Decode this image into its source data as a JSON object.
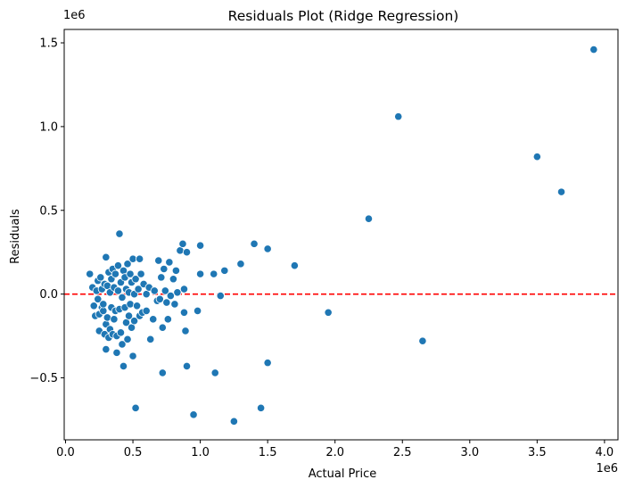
{
  "chart_data": {
    "type": "scatter",
    "title": "Residuals Plot (Ridge Regression)",
    "xlabel": "Actual Price",
    "ylabel": "Residuals",
    "x_scale_label": "1e6",
    "y_scale_label": "1e6",
    "xlim": [
      -0.01,
      4.1
    ],
    "ylim": [
      -0.87,
      1.58
    ],
    "x_ticks": [
      0.0,
      0.5,
      1.0,
      1.5,
      2.0,
      2.5,
      3.0,
      3.5,
      4.0
    ],
    "x_tick_labels": [
      "0.0",
      "0.5",
      "1.0",
      "1.5",
      "2.0",
      "2.5",
      "3.0",
      "3.5",
      "4.0"
    ],
    "y_ticks": [
      -0.5,
      0.0,
      0.5,
      1.0,
      1.5
    ],
    "y_tick_labels": [
      "−0.5",
      "0.0",
      "0.5",
      "1.0",
      "1.5"
    ],
    "grid": false,
    "marker_color": "#1f77b4",
    "reference_line": {
      "y": 0,
      "color": "#ff0000",
      "style": "dashed"
    },
    "points": [
      [
        0.18,
        0.12
      ],
      [
        0.2,
        0.04
      ],
      [
        0.21,
        -0.07
      ],
      [
        0.22,
        -0.13
      ],
      [
        0.23,
        0.02
      ],
      [
        0.24,
        -0.03
      ],
      [
        0.24,
        0.08
      ],
      [
        0.25,
        -0.12
      ],
      [
        0.25,
        -0.22
      ],
      [
        0.26,
        0.1
      ],
      [
        0.27,
        -0.08
      ],
      [
        0.27,
        0.03
      ],
      [
        0.28,
        -0.1
      ],
      [
        0.28,
        -0.06
      ],
      [
        0.29,
        -0.24
      ],
      [
        0.29,
        0.06
      ],
      [
        0.3,
        -0.18
      ],
      [
        0.3,
        0.22
      ],
      [
        0.3,
        -0.33
      ],
      [
        0.31,
        -0.14
      ],
      [
        0.31,
        0.05
      ],
      [
        0.32,
        0.13
      ],
      [
        0.32,
        -0.26
      ],
      [
        0.33,
        -0.21
      ],
      [
        0.33,
        0.01
      ],
      [
        0.34,
        -0.08
      ],
      [
        0.34,
        0.09
      ],
      [
        0.35,
        -0.24
      ],
      [
        0.35,
        0.15
      ],
      [
        0.36,
        -0.15
      ],
      [
        0.36,
        0.04
      ],
      [
        0.37,
        -0.1
      ],
      [
        0.37,
        0.12
      ],
      [
        0.38,
        -0.25
      ],
      [
        0.38,
        -0.35
      ],
      [
        0.39,
        0.02
      ],
      [
        0.39,
        0.17
      ],
      [
        0.4,
        -0.09
      ],
      [
        0.4,
        0.36
      ],
      [
        0.41,
        -0.23
      ],
      [
        0.41,
        0.07
      ],
      [
        0.42,
        -0.3
      ],
      [
        0.42,
        -0.02
      ],
      [
        0.43,
        -0.43
      ],
      [
        0.43,
        0.14
      ],
      [
        0.44,
        -0.08
      ],
      [
        0.44,
        0.1
      ],
      [
        0.45,
        -0.17
      ],
      [
        0.45,
        0.03
      ],
      [
        0.46,
        -0.27
      ],
      [
        0.46,
        0.18
      ],
      [
        0.47,
        -0.13
      ],
      [
        0.47,
        0.01
      ],
      [
        0.48,
        -0.06
      ],
      [
        0.48,
        0.12
      ],
      [
        0.49,
        -0.2
      ],
      [
        0.49,
        0.07
      ],
      [
        0.5,
        -0.37
      ],
      [
        0.5,
        0.21
      ],
      [
        0.51,
        -0.16
      ],
      [
        0.51,
        0.0
      ],
      [
        0.52,
        -0.68
      ],
      [
        0.52,
        0.09
      ],
      [
        0.53,
        -0.07
      ],
      [
        0.54,
        0.03
      ],
      [
        0.55,
        -0.13
      ],
      [
        0.55,
        0.21
      ],
      [
        0.56,
        0.12
      ],
      [
        0.57,
        -0.11
      ],
      [
        0.58,
        0.06
      ],
      [
        0.6,
        0.0
      ],
      [
        0.6,
        -0.1
      ],
      [
        0.62,
        0.04
      ],
      [
        0.63,
        -0.27
      ],
      [
        0.65,
        -0.15
      ],
      [
        0.66,
        0.02
      ],
      [
        0.68,
        -0.04
      ],
      [
        0.69,
        0.2
      ],
      [
        0.7,
        -0.03
      ],
      [
        0.71,
        0.1
      ],
      [
        0.72,
        -0.2
      ],
      [
        0.72,
        -0.47
      ],
      [
        0.73,
        0.15
      ],
      [
        0.74,
        0.02
      ],
      [
        0.75,
        -0.05
      ],
      [
        0.76,
        -0.15
      ],
      [
        0.77,
        0.19
      ],
      [
        0.78,
        -0.01
      ],
      [
        0.8,
        0.09
      ],
      [
        0.81,
        -0.06
      ],
      [
        0.82,
        0.14
      ],
      [
        0.83,
        0.01
      ],
      [
        0.85,
        0.26
      ],
      [
        0.87,
        0.3
      ],
      [
        0.88,
        -0.11
      ],
      [
        0.88,
        0.03
      ],
      [
        0.89,
        -0.22
      ],
      [
        0.9,
        0.25
      ],
      [
        0.9,
        -0.43
      ],
      [
        0.95,
        -0.72
      ],
      [
        0.98,
        -0.1
      ],
      [
        1.0,
        0.12
      ],
      [
        1.0,
        0.29
      ],
      [
        1.1,
        0.12
      ],
      [
        1.11,
        -0.47
      ],
      [
        1.15,
        -0.01
      ],
      [
        1.18,
        0.14
      ],
      [
        1.25,
        -0.76
      ],
      [
        1.3,
        0.18
      ],
      [
        1.4,
        0.3
      ],
      [
        1.45,
        -0.68
      ],
      [
        1.5,
        0.27
      ],
      [
        1.5,
        -0.41
      ],
      [
        1.7,
        0.17
      ],
      [
        1.95,
        -0.11
      ],
      [
        2.25,
        0.45
      ],
      [
        2.47,
        1.06
      ],
      [
        2.65,
        -0.28
      ],
      [
        3.5,
        0.82
      ],
      [
        3.68,
        0.61
      ],
      [
        3.92,
        1.46
      ]
    ]
  }
}
